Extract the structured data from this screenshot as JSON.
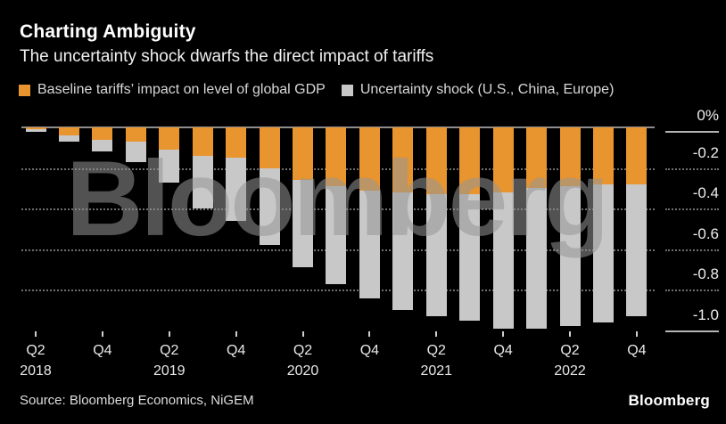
{
  "header": {
    "title": "Charting Ambiguity",
    "subtitle": "The uncertainty shock dwarfs the direct impact of tariffs"
  },
  "legend": [
    {
      "label": "Baseline tariffs’ impact on level of global GDP",
      "color": "#E8942F"
    },
    {
      "label": "Uncertainty shock (U.S., China, Europe)",
      "color": "#C8C8C8"
    }
  ],
  "watermark": "Bloomberg",
  "footer": {
    "source": "Source: Bloomberg Economics, NiGEM",
    "logo": "Bloomberg"
  },
  "colors": {
    "background": "#000000",
    "title_text": "#ffffff",
    "axis_text": "#ececec",
    "gridline": "#6e6e6e",
    "watermark": "#969696",
    "tariff_bar": "#E8942F",
    "uncertainty_bar": "#C8C8C8"
  },
  "chart_data": {
    "type": "bar",
    "stacked": true,
    "title": "Charting Ambiguity",
    "subtitle": "The uncertainty shock dwarfs the direct impact of tariffs",
    "xlabel": "",
    "ylabel": "",
    "legend_position": "top",
    "grid": "horizontal-dotted",
    "ylim": [
      -1.05,
      0
    ],
    "categories": [
      "Q2 2018",
      "Q3 2018",
      "Q4 2018",
      "Q1 2019",
      "Q2 2019",
      "Q3 2019",
      "Q4 2019",
      "Q1 2020",
      "Q2 2020",
      "Q3 2020",
      "Q4 2020",
      "Q1 2021",
      "Q2 2021",
      "Q3 2021",
      "Q4 2021",
      "Q1 2022",
      "Q2 2022",
      "Q3 2022",
      "Q4 2022"
    ],
    "series": [
      {
        "name": "Baseline tariffs’ impact on level of global GDP",
        "color": "#E8942F",
        "values": [
          -0.01,
          -0.04,
          -0.06,
          -0.07,
          -0.11,
          -0.14,
          -0.15,
          -0.2,
          -0.26,
          -0.29,
          -0.31,
          -0.32,
          -0.33,
          -0.33,
          -0.32,
          -0.3,
          -0.29,
          -0.28,
          -0.28
        ]
      },
      {
        "name": "Uncertainty shock (U.S., China, Europe)",
        "color": "#C8C8C8",
        "values": [
          -0.01,
          -0.03,
          -0.06,
          -0.1,
          -0.16,
          -0.26,
          -0.31,
          -0.38,
          -0.43,
          -0.48,
          -0.53,
          -0.58,
          -0.6,
          -0.62,
          -0.67,
          -0.69,
          -0.69,
          -0.68,
          -0.65
        ]
      }
    ],
    "stack_totals": [
      -0.02,
      -0.07,
      -0.12,
      -0.17,
      -0.27,
      -0.4,
      -0.46,
      -0.58,
      -0.69,
      -0.77,
      -0.84,
      -0.9,
      -0.93,
      -0.95,
      -0.99,
      -0.99,
      -0.98,
      -0.96,
      -0.93
    ],
    "yticks": [
      {
        "label": "0%",
        "value": 0,
        "style": "solid"
      },
      {
        "label": "-0.2",
        "value": -0.2,
        "style": "dotted"
      },
      {
        "label": "-0.4",
        "value": -0.4,
        "style": "dotted"
      },
      {
        "label": "-0.6",
        "value": -0.6,
        "style": "dotted"
      },
      {
        "label": "-0.8",
        "value": -0.8,
        "style": "dotted"
      },
      {
        "label": "-1.0",
        "value": -1.0,
        "style": "solid"
      }
    ],
    "xticks": [
      {
        "quarter": "Q2",
        "year": "2018",
        "index": 0
      },
      {
        "quarter": "Q4",
        "index": 2
      },
      {
        "quarter": "Q2",
        "year": "2019",
        "index": 4
      },
      {
        "quarter": "Q4",
        "index": 6
      },
      {
        "quarter": "Q2",
        "year": "2020",
        "index": 8
      },
      {
        "quarter": "Q4",
        "index": 10
      },
      {
        "quarter": "Q2",
        "year": "2021",
        "index": 12
      },
      {
        "quarter": "Q4",
        "index": 14
      },
      {
        "quarter": "Q2",
        "year": "2022",
        "index": 16
      },
      {
        "quarter": "Q4",
        "index": 18
      }
    ]
  }
}
